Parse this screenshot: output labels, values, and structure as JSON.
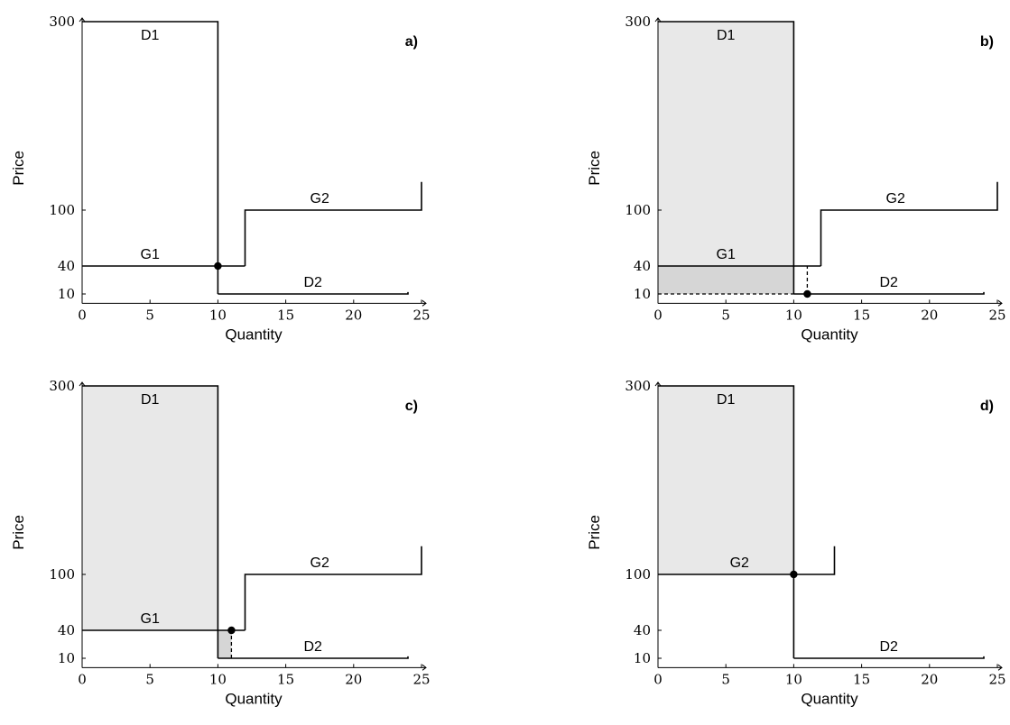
{
  "chart_data": [
    {
      "panel_label": "a)",
      "type": "line",
      "xlabel": "Quantity",
      "ylabel": "Price",
      "xlim": [
        0,
        25
      ],
      "x_ticks": [
        0,
        5,
        10,
        15,
        20,
        25
      ],
      "y_ticks": [
        10,
        40,
        100,
        300
      ],
      "series": [
        {
          "name": "D1",
          "style": "solid",
          "points": [
            [
              0,
              300
            ],
            [
              10,
              300
            ],
            [
              10,
              10
            ]
          ]
        },
        {
          "name": "D2",
          "style": "solid",
          "points": [
            [
              10,
              10
            ],
            [
              24,
              10
            ],
            [
              24,
              12
            ]
          ]
        },
        {
          "name": "G1",
          "style": "solid",
          "points": [
            [
              0,
              40
            ],
            [
              12,
              40
            ]
          ]
        },
        {
          "name": "G2",
          "style": "solid",
          "points": [
            [
              12,
              40
            ],
            [
              12,
              100
            ],
            [
              25,
              100
            ],
            [
              25,
              130
            ]
          ]
        }
      ],
      "dashed": [],
      "shaded": [],
      "markers": [
        [
          10,
          40
        ]
      ]
    },
    {
      "panel_label": "b)",
      "type": "line",
      "xlabel": "Quantity",
      "ylabel": "Price",
      "xlim": [
        0,
        25
      ],
      "x_ticks": [
        0,
        5,
        10,
        15,
        20,
        25
      ],
      "y_ticks": [
        10,
        40,
        100,
        300
      ],
      "series": [
        {
          "name": "D1",
          "style": "solid",
          "points": [
            [
              0,
              300
            ],
            [
              10,
              300
            ],
            [
              10,
              10
            ]
          ]
        },
        {
          "name": "D2",
          "style": "solid",
          "points": [
            [
              10,
              10
            ],
            [
              24,
              10
            ],
            [
              24,
              12
            ]
          ]
        },
        {
          "name": "G1",
          "style": "solid",
          "points": [
            [
              0,
              40
            ],
            [
              12,
              40
            ]
          ]
        },
        {
          "name": "G2",
          "style": "solid",
          "points": [
            [
              12,
              40
            ],
            [
              12,
              100
            ],
            [
              25,
              100
            ],
            [
              25,
              130
            ]
          ]
        }
      ],
      "dashed": [
        {
          "points": [
            [
              0,
              10
            ],
            [
              10,
              10
            ]
          ]
        },
        {
          "points": [
            [
              11,
              10
            ],
            [
              11,
              40
            ]
          ]
        }
      ],
      "shaded": [
        {
          "points": [
            [
              0,
              40
            ],
            [
              10,
              40
            ],
            [
              10,
              300
            ],
            [
              0,
              300
            ]
          ],
          "fill": "#e8e8e8"
        },
        {
          "points": [
            [
              0,
              10
            ],
            [
              10,
              10
            ],
            [
              10,
              40
            ],
            [
              0,
              40
            ]
          ],
          "fill": "#d6d6d6"
        }
      ],
      "markers": [
        [
          11,
          10
        ]
      ]
    },
    {
      "panel_label": "c)",
      "type": "line",
      "xlabel": "Quantity",
      "ylabel": "Price",
      "xlim": [
        0,
        25
      ],
      "x_ticks": [
        0,
        5,
        10,
        15,
        20,
        25
      ],
      "y_ticks": [
        10,
        40,
        100,
        300
      ],
      "series": [
        {
          "name": "D1",
          "style": "solid",
          "points": [
            [
              0,
              300
            ],
            [
              10,
              300
            ],
            [
              10,
              10
            ]
          ]
        },
        {
          "name": "D2",
          "style": "solid",
          "points": [
            [
              10,
              10
            ],
            [
              24,
              10
            ],
            [
              24,
              12
            ]
          ]
        },
        {
          "name": "G1",
          "style": "solid",
          "points": [
            [
              0,
              40
            ],
            [
              12,
              40
            ]
          ]
        },
        {
          "name": "G2",
          "style": "solid",
          "points": [
            [
              12,
              40
            ],
            [
              12,
              100
            ],
            [
              25,
              100
            ],
            [
              25,
              130
            ]
          ]
        }
      ],
      "dashed": [
        {
          "points": [
            [
              11,
              10
            ],
            [
              11,
              40
            ]
          ]
        }
      ],
      "shaded": [
        {
          "points": [
            [
              0,
              40
            ],
            [
              10,
              40
            ],
            [
              10,
              300
            ],
            [
              0,
              300
            ]
          ],
          "fill": "#e8e8e8"
        },
        {
          "points": [
            [
              10,
              10
            ],
            [
              11,
              10
            ],
            [
              11,
              40
            ],
            [
              10,
              40
            ]
          ],
          "fill": "#d6d6d6"
        }
      ],
      "markers": [
        [
          11,
          40
        ]
      ]
    },
    {
      "panel_label": "d)",
      "type": "line",
      "xlabel": "Quantity",
      "ylabel": "Price",
      "xlim": [
        0,
        25
      ],
      "x_ticks": [
        0,
        5,
        10,
        15,
        20,
        25
      ],
      "y_ticks": [
        10,
        40,
        100,
        300
      ],
      "series": [
        {
          "name": "D1",
          "style": "solid",
          "points": [
            [
              0,
              300
            ],
            [
              10,
              300
            ],
            [
              10,
              10
            ]
          ]
        },
        {
          "name": "D2",
          "style": "solid",
          "points": [
            [
              10,
              10
            ],
            [
              24,
              10
            ],
            [
              24,
              12
            ]
          ]
        },
        {
          "name": "G2",
          "style": "solid",
          "points": [
            [
              0,
              100
            ],
            [
              13,
              100
            ],
            [
              13,
              130
            ]
          ]
        }
      ],
      "dashed": [],
      "shaded": [
        {
          "points": [
            [
              0,
              100
            ],
            [
              10,
              100
            ],
            [
              10,
              300
            ],
            [
              0,
              300
            ]
          ],
          "fill": "#e8e8e8"
        }
      ],
      "markers": [
        [
          10,
          100
        ]
      ]
    }
  ]
}
